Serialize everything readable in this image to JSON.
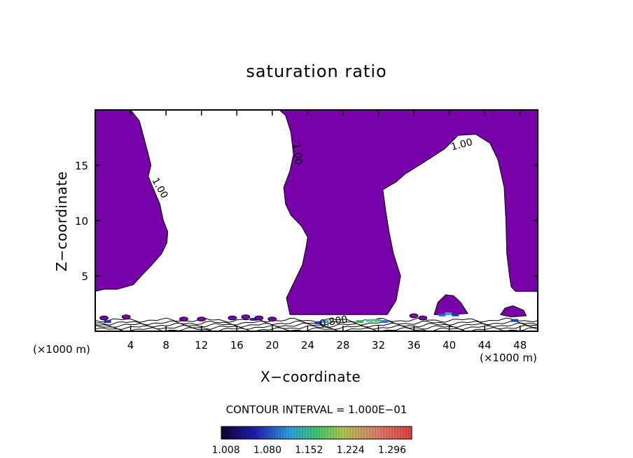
{
  "chart_data": {
    "type": "heatmap",
    "title": "saturation ratio",
    "xlabel": "X−coordinate",
    "ylabel": "Z−coordinate",
    "x_unit_note": "(×1000 m)",
    "xlim": [
      0,
      50
    ],
    "ylim": [
      0,
      20
    ],
    "x_ticks": [
      4,
      8,
      12,
      16,
      20,
      24,
      28,
      32,
      36,
      40,
      44,
      48
    ],
    "y_ticks": [
      5,
      10,
      15
    ],
    "contour_interval_text": "CONTOUR INTERVAL = 1.000E−01",
    "colorbar_ticks": [
      "1.008",
      "1.080",
      "1.152",
      "1.224",
      "1.296"
    ],
    "colorbar_range": [
      1.0,
      1.33
    ],
    "contour_labels": [
      {
        "text": "1.00",
        "x": 7.0,
        "z": 12.8,
        "angle": 60
      },
      {
        "text": "1.00",
        "x": 22.5,
        "z": 16.0,
        "angle": 85
      },
      {
        "text": "1.00",
        "x": 41.5,
        "z": 16.6,
        "angle": -15
      },
      {
        "text": "0.800",
        "x": 27.0,
        "z": 0.6,
        "angle": -10
      }
    ],
    "supersaturated_fill_color": "#7800a8",
    "supersaturated_regions": [
      [
        [
          0,
          20
        ],
        [
          4,
          20
        ],
        [
          5,
          19
        ],
        [
          5.5,
          17.5
        ],
        [
          6,
          16
        ],
        [
          6.3,
          15
        ],
        [
          6,
          14
        ],
        [
          6.5,
          13
        ],
        [
          7.3,
          11.5
        ],
        [
          7.7,
          10
        ],
        [
          8.2,
          9
        ],
        [
          8.1,
          8
        ],
        [
          7.5,
          7
        ],
        [
          6.4,
          6
        ],
        [
          5.2,
          5
        ],
        [
          4.3,
          4.2
        ],
        [
          2.5,
          3.8
        ],
        [
          1,
          3.8
        ],
        [
          0,
          3.6
        ]
      ],
      [
        [
          20.8,
          20
        ],
        [
          50,
          20
        ],
        [
          50,
          3.6
        ],
        [
          47.5,
          3.6
        ],
        [
          47,
          4
        ],
        [
          46.8,
          5
        ],
        [
          46.5,
          7
        ],
        [
          46.4,
          10
        ],
        [
          46.2,
          13
        ],
        [
          45.5,
          15.5
        ],
        [
          44.6,
          17
        ],
        [
          43,
          17.8
        ],
        [
          41,
          17.7
        ],
        [
          39.5,
          16.5
        ],
        [
          37,
          15.2
        ],
        [
          35,
          14.2
        ],
        [
          34,
          13.5
        ],
        [
          32.5,
          12.8
        ],
        [
          32.8,
          11
        ],
        [
          33.2,
          9
        ],
        [
          33.7,
          7
        ],
        [
          34.5,
          5
        ],
        [
          34,
          2.8
        ],
        [
          33,
          1.5
        ],
        [
          22,
          1.5
        ],
        [
          21.6,
          3
        ],
        [
          22.5,
          4.5
        ],
        [
          23.4,
          6
        ],
        [
          23.8,
          7.5
        ],
        [
          24,
          8.5
        ],
        [
          23.3,
          9.5
        ],
        [
          22.1,
          10.5
        ],
        [
          21.5,
          11.5
        ],
        [
          21.3,
          13
        ],
        [
          22,
          14.5
        ],
        [
          22.4,
          16
        ],
        [
          22.1,
          18
        ],
        [
          21.5,
          19.5
        ]
      ],
      [
        [
          38.3,
          1.5
        ],
        [
          38.7,
          2.6
        ],
        [
          39.6,
          3.3
        ],
        [
          40.5,
          3.2
        ],
        [
          41.3,
          2.6
        ],
        [
          42.1,
          1.6
        ],
        [
          40,
          1.5
        ]
      ],
      [
        [
          45.8,
          1.5
        ],
        [
          46.3,
          2.1
        ],
        [
          47.2,
          2.3
        ],
        [
          48.4,
          1.9
        ],
        [
          48.7,
          1.4
        ],
        [
          47,
          1.3
        ]
      ]
    ],
    "grid": false,
    "legend": "colorbar-bottom"
  }
}
